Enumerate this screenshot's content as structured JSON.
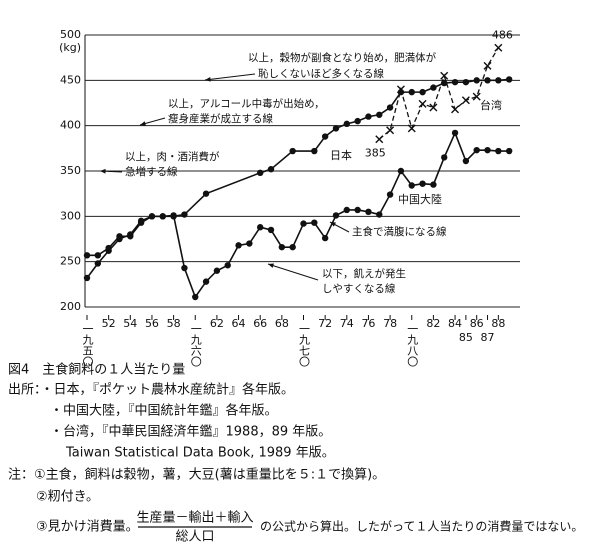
{
  "chart_data": {
    "type": "line",
    "y_unit": "(kg)",
    "xlim": [
      1950,
      1990
    ],
    "ylim": [
      200,
      500
    ],
    "yticks": [
      200,
      250,
      300,
      350,
      400,
      450,
      500
    ],
    "xticks": [
      {
        "value": 1950,
        "label": "一九五〇"
      },
      {
        "value": 1952,
        "label": "52"
      },
      {
        "value": 1954,
        "label": "54"
      },
      {
        "value": 1956,
        "label": "56"
      },
      {
        "value": 1958,
        "label": "58"
      },
      {
        "value": 1960,
        "label": "一九六〇"
      },
      {
        "value": 1962,
        "label": "62"
      },
      {
        "value": 1964,
        "label": "64"
      },
      {
        "value": 1966,
        "label": "66"
      },
      {
        "value": 1968,
        "label": "68"
      },
      {
        "value": 1970,
        "label": "一九七〇"
      },
      {
        "value": 1972,
        "label": "72"
      },
      {
        "value": 1974,
        "label": "74"
      },
      {
        "value": 1976,
        "label": "76"
      },
      {
        "value": 1978,
        "label": "78"
      },
      {
        "value": 1980,
        "label": "一九八〇"
      },
      {
        "value": 1982,
        "label": "82"
      },
      {
        "value": 1984,
        "label": "84"
      },
      {
        "value": 1985,
        "label": "85"
      },
      {
        "value": 1986,
        "label": "86"
      },
      {
        "value": 1987,
        "label": "87"
      },
      {
        "value": 1988,
        "label": "88"
      }
    ],
    "grid": true,
    "series": [
      {
        "name": "日本",
        "color": "#111111",
        "style": "solid",
        "marker": "dot",
        "x": [
          1950,
          1951,
          1952,
          1953,
          1954,
          1955,
          1956,
          1957,
          1958,
          1959,
          1961,
          1966,
          1967,
          1969,
          1971,
          1972,
          1973,
          1974,
          1975,
          1976,
          1977,
          1978,
          1979,
          1980,
          1981,
          1982,
          1983,
          1984,
          1985,
          1986,
          1987,
          1988,
          1989
        ],
        "values": [
          232,
          248,
          262,
          275,
          280,
          295,
          300,
          300,
          300,
          302,
          325,
          348,
          352,
          372,
          372,
          388,
          397,
          402,
          405,
          410,
          412,
          420,
          437,
          437,
          437,
          442,
          447,
          448,
          448,
          450,
          450,
          450,
          451
        ]
      },
      {
        "name": "中国大陸",
        "color": "#111111",
        "style": "solid",
        "marker": "dot",
        "x": [
          1950,
          1951,
          1952,
          1953,
          1954,
          1955,
          1956,
          1957,
          1958,
          1959,
          1960,
          1961,
          1962,
          1963,
          1964,
          1965,
          1966,
          1967,
          1968,
          1969,
          1970,
          1971,
          1972,
          1973,
          1974,
          1975,
          1976,
          1977,
          1978,
          1979,
          1980,
          1981,
          1982,
          1983,
          1984,
          1985,
          1986,
          1987,
          1988,
          1989
        ],
        "values": [
          257,
          257,
          265,
          278,
          278,
          293,
          300,
          300,
          301,
          243,
          211,
          228,
          240,
          246,
          268,
          270,
          288,
          285,
          266,
          266,
          292,
          293,
          276,
          301,
          307,
          307,
          305,
          302,
          324,
          350,
          334,
          336,
          335,
          365,
          392,
          361,
          373,
          373,
          372,
          372
        ]
      },
      {
        "name": "台湾",
        "color": "#111111",
        "style": "dashed",
        "marker": "x",
        "x": [
          1977,
          1978,
          1979,
          1980,
          1981,
          1982,
          1983,
          1984,
          1985,
          1986,
          1987,
          1988
        ],
        "values": [
          385,
          395,
          440,
          397,
          424,
          420,
          455,
          418,
          428,
          432,
          466,
          486
        ]
      }
    ],
    "annotations": [
      "以上，穀物が副食となり始め，肥満体が",
      "恥しくないほど多くなる線",
      "以上，アルコール中毒が出始め，",
      "瘦身産業が成立する線",
      "以上，肉・酒消費が",
      "急増する線",
      "主食で満腹になる線",
      "以下，飢えが発生",
      "しやすくなる線"
    ]
  },
  "caption": {
    "title": "図4　主食飼料の１人当たり量",
    "sources": [
      "出所：・日本，『ポケット農林水産統計』各年版。",
      "・中国大陸，『中国統計年鑑』各年版。",
      "・台湾，『中華民国経済年鑑』1988，89 年版。",
      "Taiwan Statistical Data Book, 1989 年版。"
    ],
    "notes": [
      "注：①主食，飼料は穀物，薯，大豆(薯は重量比を５:１で換算)。",
      "②籾付き。",
      "③見かけ消費量。"
    ],
    "formula_numerator": "生産量－輸出＋輸入",
    "formula_denominator": "総人口",
    "formula_tail": "の公式から算出。したがって１人当たりの消費量ではない。"
  }
}
